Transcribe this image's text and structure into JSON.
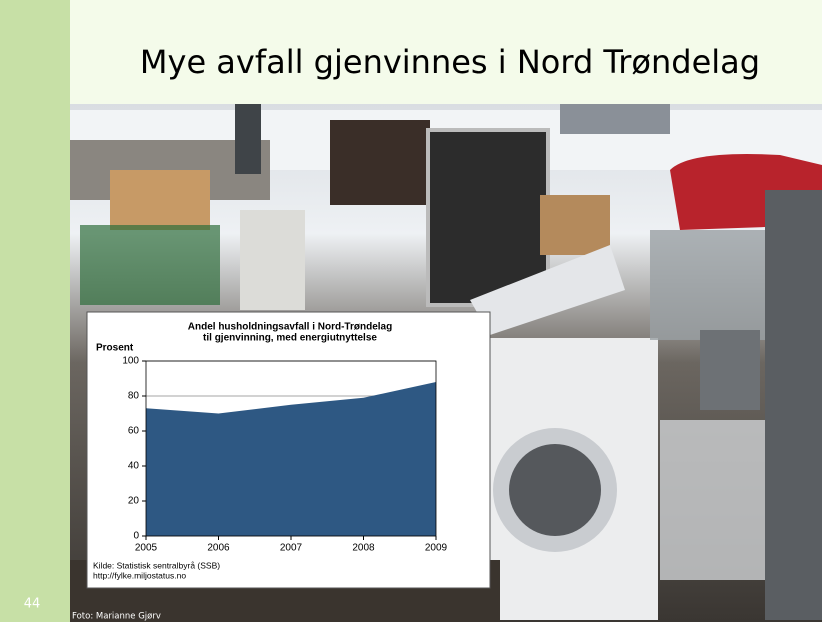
{
  "slide": {
    "title": "Mye avfall gjenvinnes i Nord Trøndelag",
    "number": "44",
    "photo_credit": "Foto: Marianne Gjørv"
  },
  "chart_data": {
    "type": "area",
    "title": [
      "Andel husholdningsavfall i Nord-Trøndelag",
      "til gjenvinning, med energiutnyttelse"
    ],
    "y_label": "Prosent",
    "x": [
      2005,
      2006,
      2007,
      2008,
      2009
    ],
    "values": [
      73,
      70,
      75,
      79,
      88
    ],
    "color": "#2e5883",
    "xlim": [
      2005,
      2009
    ],
    "xticks": [
      2005,
      2006,
      2007,
      2008,
      2009
    ],
    "ylim": [
      0,
      100
    ],
    "yticks": [
      0,
      20,
      40,
      60,
      80,
      100
    ],
    "grid": true,
    "source": [
      "Kilde: Statistisk sentralbyrå (SSB)",
      "http://fylke.miljostatus.no"
    ]
  }
}
